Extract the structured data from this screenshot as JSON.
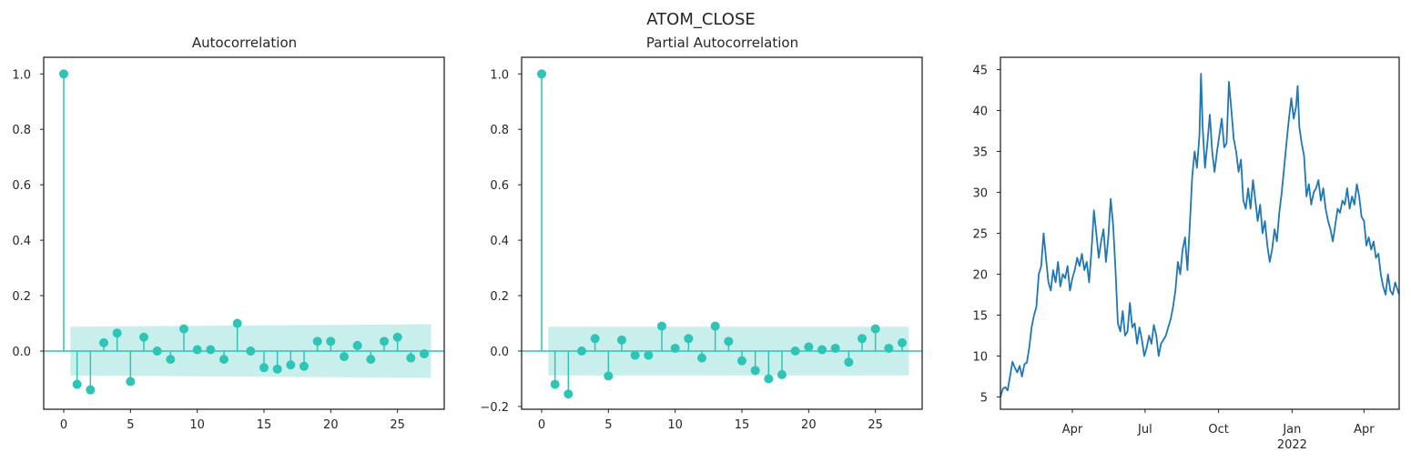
{
  "figure_title": "ATOM_CLOSE",
  "chart_data": [
    {
      "type": "stem",
      "title": "Autocorrelation",
      "xlim": [
        -1.5,
        28.5
      ],
      "ylim": [
        -0.21,
        1.06
      ],
      "xticks": [
        0,
        5,
        10,
        15,
        20,
        25
      ],
      "yticks": [
        {
          "value": 0.0,
          "label": "0.0"
        },
        {
          "value": 0.2,
          "label": "0.2"
        },
        {
          "value": 0.4,
          "label": "0.4"
        },
        {
          "value": 0.6,
          "label": "0.6"
        },
        {
          "value": 0.8,
          "label": "0.8"
        },
        {
          "value": 1.0,
          "label": "1.0"
        }
      ],
      "lags": [
        0,
        1,
        2,
        3,
        4,
        5,
        6,
        7,
        8,
        9,
        10,
        11,
        12,
        13,
        14,
        15,
        16,
        17,
        18,
        19,
        20,
        21,
        22,
        23,
        24,
        25,
        26,
        27
      ],
      "values": [
        1.0,
        -0.12,
        -0.14,
        0.03,
        0.065,
        -0.11,
        0.05,
        0.0,
        -0.03,
        0.08,
        0.005,
        0.005,
        -0.03,
        0.1,
        0.0,
        -0.06,
        -0.065,
        -0.05,
        -0.055,
        0.035,
        0.035,
        -0.02,
        0.02,
        -0.03,
        0.035,
        0.05,
        -0.025,
        -0.01
      ],
      "confidence_band": {
        "x": [
          0.5,
          27.5
        ],
        "upper": [
          0.088,
          0.097
        ],
        "lower": [
          -0.088,
          -0.097
        ]
      },
      "grid": false
    },
    {
      "type": "stem",
      "title": "Partial Autocorrelation",
      "xlim": [
        -1.5,
        28.5
      ],
      "ylim": [
        -0.21,
        1.06
      ],
      "xticks": [
        0,
        5,
        10,
        15,
        20,
        25
      ],
      "yticks": [
        {
          "value": -0.2,
          "label": "−0.2"
        },
        {
          "value": 0.0,
          "label": "0.0"
        },
        {
          "value": 0.2,
          "label": "0.2"
        },
        {
          "value": 0.4,
          "label": "0.4"
        },
        {
          "value": 0.6,
          "label": "0.6"
        },
        {
          "value": 0.8,
          "label": "0.8"
        },
        {
          "value": 1.0,
          "label": "1.0"
        }
      ],
      "lags": [
        0,
        1,
        2,
        3,
        4,
        5,
        6,
        7,
        8,
        9,
        10,
        11,
        12,
        13,
        14,
        15,
        16,
        17,
        18,
        19,
        20,
        21,
        22,
        23,
        24,
        25,
        26,
        27
      ],
      "values": [
        1.0,
        -0.12,
        -0.155,
        0.0,
        0.045,
        -0.09,
        0.04,
        -0.015,
        -0.015,
        0.09,
        0.01,
        0.045,
        -0.025,
        0.09,
        0.035,
        -0.035,
        -0.07,
        -0.1,
        -0.085,
        0.0,
        0.015,
        0.005,
        0.01,
        -0.04,
        0.045,
        0.08,
        0.01,
        0.03
      ],
      "confidence_band": {
        "x": [
          0.5,
          27.5
        ],
        "upper": [
          0.088,
          0.088
        ],
        "lower": [
          -0.088,
          -0.088
        ]
      },
      "grid": false
    },
    {
      "type": "line",
      "title": "",
      "x_start": "2021-01-01",
      "x_end": "2022-05-15",
      "ylim": [
        3.5,
        46.5
      ],
      "yticks": [
        5,
        10,
        15,
        20,
        25,
        30,
        35,
        40,
        45
      ],
      "xticks": [
        {
          "date": "2021-04-01",
          "label": "Apr",
          "sublabel": ""
        },
        {
          "date": "2021-07-01",
          "label": "Jul",
          "sublabel": ""
        },
        {
          "date": "2021-10-01",
          "label": "Oct",
          "sublabel": ""
        },
        {
          "date": "2022-01-01",
          "label": "Jan",
          "sublabel": "2022"
        },
        {
          "date": "2022-04-01",
          "label": "Apr",
          "sublabel": ""
        }
      ],
      "series": [
        {
          "points": [
            [
              "2021-01-01",
              5.0
            ],
            [
              "2021-01-04",
              6.0
            ],
            [
              "2021-01-07",
              6.2
            ],
            [
              "2021-01-10",
              5.8
            ],
            [
              "2021-01-13",
              7.5
            ],
            [
              "2021-01-16",
              9.3
            ],
            [
              "2021-01-19",
              8.6
            ],
            [
              "2021-01-22",
              8.0
            ],
            [
              "2021-01-25",
              8.8
            ],
            [
              "2021-01-28",
              7.5
            ],
            [
              "2021-01-31",
              9.0
            ],
            [
              "2021-02-03",
              9.2
            ],
            [
              "2021-02-06",
              11.0
            ],
            [
              "2021-02-09",
              13.5
            ],
            [
              "2021-02-12",
              15.0
            ],
            [
              "2021-02-15",
              16.0
            ],
            [
              "2021-02-18",
              20.0
            ],
            [
              "2021-02-21",
              21.0
            ],
            [
              "2021-02-24",
              25.0
            ],
            [
              "2021-02-27",
              22.0
            ],
            [
              "2021-03-02",
              19.0
            ],
            [
              "2021-03-05",
              18.0
            ],
            [
              "2021-03-08",
              20.5
            ],
            [
              "2021-03-11",
              19.0
            ],
            [
              "2021-03-14",
              21.5
            ],
            [
              "2021-03-17",
              18.5
            ],
            [
              "2021-03-20",
              20.0
            ],
            [
              "2021-03-23",
              19.5
            ],
            [
              "2021-03-26",
              21.0
            ],
            [
              "2021-03-29",
              18.0
            ],
            [
              "2021-04-01",
              19.5
            ],
            [
              "2021-04-04",
              20.5
            ],
            [
              "2021-04-07",
              22.0
            ],
            [
              "2021-04-10",
              21.0
            ],
            [
              "2021-04-13",
              22.5
            ],
            [
              "2021-04-16",
              20.5
            ],
            [
              "2021-04-19",
              21.5
            ],
            [
              "2021-04-22",
              19.0
            ],
            [
              "2021-04-25",
              23.0
            ],
            [
              "2021-04-28",
              27.8
            ],
            [
              "2021-05-01",
              25.0
            ],
            [
              "2021-05-04",
              22.0
            ],
            [
              "2021-05-07",
              24.0
            ],
            [
              "2021-05-10",
              25.5
            ],
            [
              "2021-05-13",
              21.5
            ],
            [
              "2021-05-16",
              24.5
            ],
            [
              "2021-05-19",
              29.2
            ],
            [
              "2021-05-22",
              26.0
            ],
            [
              "2021-05-25",
              20.5
            ],
            [
              "2021-05-28",
              14.0
            ],
            [
              "2021-05-31",
              13.0
            ],
            [
              "2021-06-03",
              15.5
            ],
            [
              "2021-06-06",
              12.5
            ],
            [
              "2021-06-09",
              13.0
            ],
            [
              "2021-06-12",
              16.5
            ],
            [
              "2021-06-15",
              13.5
            ],
            [
              "2021-06-18",
              14.0
            ],
            [
              "2021-06-21",
              11.5
            ],
            [
              "2021-06-24",
              13.5
            ],
            [
              "2021-06-27",
              12.0
            ],
            [
              "2021-06-30",
              10.0
            ],
            [
              "2021-07-03",
              11.0
            ],
            [
              "2021-07-06",
              12.5
            ],
            [
              "2021-07-09",
              11.5
            ],
            [
              "2021-07-12",
              13.8
            ],
            [
              "2021-07-15",
              12.5
            ],
            [
              "2021-07-18",
              10.0
            ],
            [
              "2021-07-21",
              11.5
            ],
            [
              "2021-07-24",
              12.0
            ],
            [
              "2021-07-27",
              12.5
            ],
            [
              "2021-07-30",
              13.5
            ],
            [
              "2021-08-02",
              14.5
            ],
            [
              "2021-08-05",
              16.0
            ],
            [
              "2021-08-08",
              18.0
            ],
            [
              "2021-08-11",
              21.5
            ],
            [
              "2021-08-14",
              20.0
            ],
            [
              "2021-08-17",
              23.0
            ],
            [
              "2021-08-20",
              24.5
            ],
            [
              "2021-08-23",
              20.5
            ],
            [
              "2021-08-26",
              26.0
            ],
            [
              "2021-08-29",
              32.0
            ],
            [
              "2021-09-01",
              35.0
            ],
            [
              "2021-09-04",
              33.0
            ],
            [
              "2021-09-07",
              37.0
            ],
            [
              "2021-09-09",
              44.5
            ],
            [
              "2021-09-11",
              38.0
            ],
            [
              "2021-09-14",
              33.0
            ],
            [
              "2021-09-17",
              36.0
            ],
            [
              "2021-09-20",
              39.5
            ],
            [
              "2021-09-23",
              35.0
            ],
            [
              "2021-09-26",
              32.5
            ],
            [
              "2021-09-29",
              35.0
            ],
            [
              "2021-10-02",
              37.0
            ],
            [
              "2021-10-05",
              39.0
            ],
            [
              "2021-10-08",
              35.5
            ],
            [
              "2021-10-11",
              36.0
            ],
            [
              "2021-10-14",
              43.5
            ],
            [
              "2021-10-17",
              40.0
            ],
            [
              "2021-10-20",
              36.5
            ],
            [
              "2021-10-23",
              35.0
            ],
            [
              "2021-10-26",
              32.5
            ],
            [
              "2021-10-29",
              34.0
            ],
            [
              "2021-11-01",
              29.0
            ],
            [
              "2021-11-04",
              28.0
            ],
            [
              "2021-11-07",
              30.5
            ],
            [
              "2021-11-10",
              28.0
            ],
            [
              "2021-11-13",
              31.5
            ],
            [
              "2021-11-16",
              29.0
            ],
            [
              "2021-11-19",
              26.5
            ],
            [
              "2021-11-22",
              28.5
            ],
            [
              "2021-11-25",
              25.0
            ],
            [
              "2021-11-28",
              26.5
            ],
            [
              "2021-12-01",
              23.5
            ],
            [
              "2021-12-04",
              21.5
            ],
            [
              "2021-12-07",
              23.0
            ],
            [
              "2021-12-10",
              25.5
            ],
            [
              "2021-12-13",
              24.0
            ],
            [
              "2021-12-16",
              27.5
            ],
            [
              "2021-12-19",
              30.0
            ],
            [
              "2021-12-22",
              33.0
            ],
            [
              "2021-12-25",
              36.0
            ],
            [
              "2021-12-28",
              39.0
            ],
            [
              "2021-12-31",
              41.5
            ],
            [
              "2022-01-03",
              39.0
            ],
            [
              "2022-01-06",
              40.5
            ],
            [
              "2022-01-08",
              43.0
            ],
            [
              "2022-01-10",
              38.0
            ],
            [
              "2022-01-13",
              36.0
            ],
            [
              "2022-01-16",
              34.5
            ],
            [
              "2022-01-19",
              29.5
            ],
            [
              "2022-01-22",
              31.0
            ],
            [
              "2022-01-25",
              28.5
            ],
            [
              "2022-01-28",
              30.0
            ],
            [
              "2022-01-31",
              30.5
            ],
            [
              "2022-02-03",
              31.5
            ],
            [
              "2022-02-06",
              29.0
            ],
            [
              "2022-02-09",
              30.5
            ],
            [
              "2022-02-12",
              28.0
            ],
            [
              "2022-02-15",
              26.5
            ],
            [
              "2022-02-18",
              25.5
            ],
            [
              "2022-02-21",
              24.0
            ],
            [
              "2022-02-24",
              26.0
            ],
            [
              "2022-02-27",
              28.0
            ],
            [
              "2022-03-02",
              27.5
            ],
            [
              "2022-03-05",
              29.0
            ],
            [
              "2022-03-08",
              28.5
            ],
            [
              "2022-03-11",
              30.5
            ],
            [
              "2022-03-14",
              28.0
            ],
            [
              "2022-03-17",
              29.5
            ],
            [
              "2022-03-20",
              28.5
            ],
            [
              "2022-03-23",
              31.0
            ],
            [
              "2022-03-26",
              29.5
            ],
            [
              "2022-03-29",
              27.0
            ],
            [
              "2022-04-01",
              26.5
            ],
            [
              "2022-04-04",
              23.5
            ],
            [
              "2022-04-07",
              24.5
            ],
            [
              "2022-04-10",
              23.0
            ],
            [
              "2022-04-13",
              24.0
            ],
            [
              "2022-04-16",
              22.0
            ],
            [
              "2022-04-19",
              22.5
            ],
            [
              "2022-04-22",
              20.0
            ],
            [
              "2022-04-25",
              18.5
            ],
            [
              "2022-04-28",
              17.5
            ],
            [
              "2022-05-01",
              20.0
            ],
            [
              "2022-05-04",
              18.0
            ],
            [
              "2022-05-07",
              17.5
            ],
            [
              "2022-05-10",
              19.0
            ],
            [
              "2022-05-15",
              17.5
            ]
          ]
        }
      ],
      "grid": false
    }
  ],
  "colors": {
    "stem": "#2ec4b6",
    "band": "#c9efec",
    "baseline": "#2ec4b6",
    "line": "#1f77b4",
    "frame": "#262626",
    "text": "#262626"
  }
}
